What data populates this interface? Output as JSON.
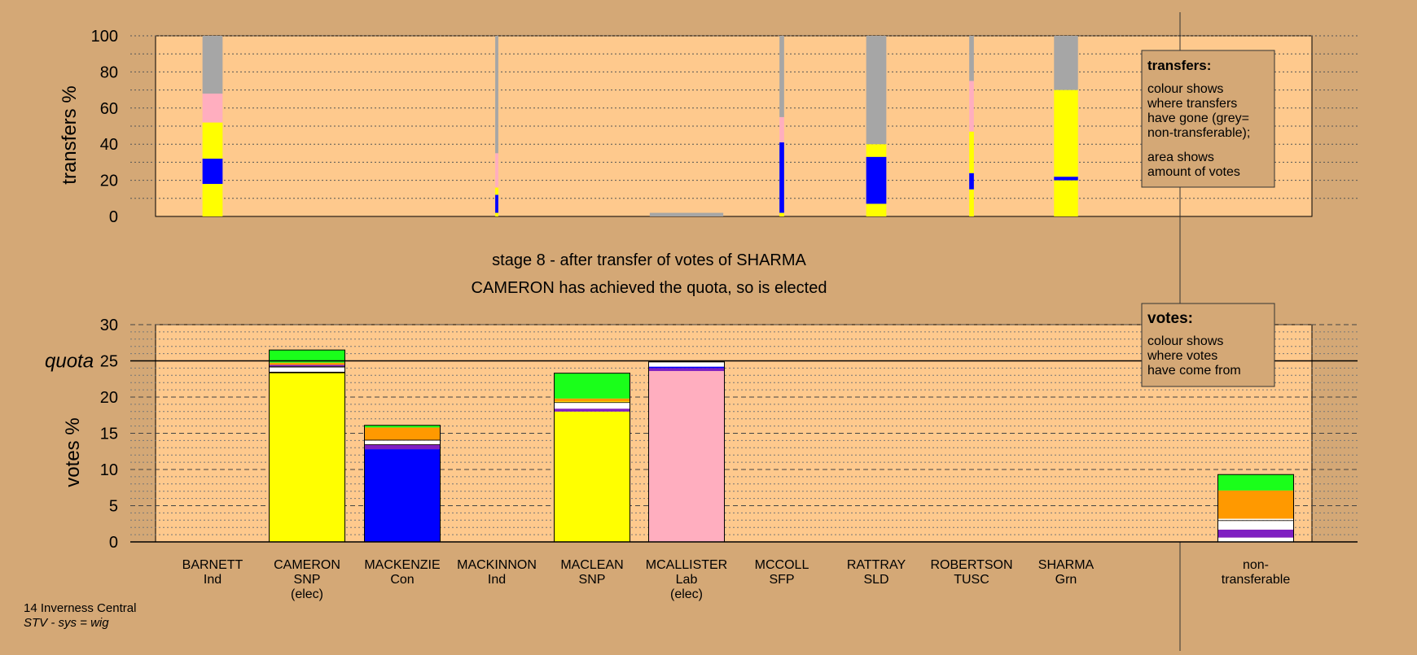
{
  "colors": {
    "page_bg": "#d4a876",
    "plot_bg": "#fec98d",
    "legend_bg": "#d4a876",
    "snp": "#ffff00",
    "con": "#0000ff",
    "lab": "#ffaebf",
    "grn": "#1aff1a",
    "sld": "#ff9900",
    "tusc": "#7f1fc2",
    "ind": "#ffffff",
    "sfp": "#000000",
    "nontransferable": "#a6a6a6"
  },
  "candidates": [
    {
      "name": "BARNETT",
      "party": "Ind",
      "status": ""
    },
    {
      "name": "CAMERON",
      "party": "SNP",
      "status": "(elec)"
    },
    {
      "name": "MACKENZIE",
      "party": "Con",
      "status": ""
    },
    {
      "name": "MACKINNON",
      "party": "Ind",
      "status": ""
    },
    {
      "name": "MACLEAN",
      "party": "SNP",
      "status": ""
    },
    {
      "name": "MCALLISTER",
      "party": "Lab",
      "status": "(elec)"
    },
    {
      "name": "MCCOLL",
      "party": "SFP",
      "status": ""
    },
    {
      "name": "RATTRAY",
      "party": "SLD",
      "status": ""
    },
    {
      "name": "ROBERTSON",
      "party": "TUSC",
      "status": ""
    },
    {
      "name": "SHARMA",
      "party": "Grn",
      "status": ""
    }
  ],
  "nontransferable_label": [
    "non-",
    "transferable"
  ],
  "stage_title": "stage 8 - after transfer of votes of SHARMA",
  "stage_subtitle": "CAMERON has achieved the quota, so is elected",
  "transfers_legend": {
    "title": "transfers:",
    "lines": [
      "colour shows",
      "where transfers",
      "have gone (grey=",
      "non-transferable);"
    ],
    "lines2": [
      "area shows",
      "amount of votes"
    ]
  },
  "votes_legend": {
    "title": "votes:",
    "lines": [
      "colour shows",
      "where votes",
      "have come from"
    ]
  },
  "footer": {
    "line1": "14 Inverness Central",
    "line2": "STV - sys = wig"
  },
  "chart_data": [
    {
      "type": "bar",
      "stacked": true,
      "ylabel": "transfers %",
      "ylim": [
        0,
        100
      ],
      "yticks": [
        0,
        20,
        40,
        60,
        80,
        100
      ],
      "note": "bar width shows amount of votes transferred",
      "bars": [
        {
          "candidate": "BARNETT",
          "relative_width": 0.26,
          "segments": [
            {
              "color": "snp",
              "value": 18
            },
            {
              "color": "con",
              "value": 14
            },
            {
              "color": "snp",
              "value": 20
            },
            {
              "color": "lab",
              "value": 16
            },
            {
              "color": "nontransferable",
              "value": 32
            }
          ]
        },
        {
          "candidate": "MACKINNON",
          "relative_width": 0.04,
          "segments": [
            {
              "color": "snp",
              "value": 2
            },
            {
              "color": "con",
              "value": 10
            },
            {
              "color": "snp",
              "value": 4
            },
            {
              "color": "lab",
              "value": 19
            },
            {
              "color": "nontransferable",
              "value": 65
            }
          ]
        },
        {
          "candidate": "MCALLISTER",
          "relative_width": 0.95,
          "segments": [
            {
              "color": "nontransferable",
              "value": 2
            }
          ]
        },
        {
          "candidate": "MCCOLL",
          "relative_width": 0.06,
          "segments": [
            {
              "color": "snp",
              "value": 2
            },
            {
              "color": "con",
              "value": 39
            },
            {
              "color": "lab",
              "value": 14
            },
            {
              "color": "nontransferable",
              "value": 45
            }
          ]
        },
        {
          "candidate": "RATTRAY",
          "relative_width": 0.26,
          "segments": [
            {
              "color": "snp",
              "value": 7
            },
            {
              "color": "con",
              "value": 26
            },
            {
              "color": "snp",
              "value": 7
            },
            {
              "color": "nontransferable",
              "value": 60
            }
          ]
        },
        {
          "candidate": "ROBERTSON",
          "relative_width": 0.06,
          "segments": [
            {
              "color": "snp",
              "value": 15
            },
            {
              "color": "con",
              "value": 9
            },
            {
              "color": "snp",
              "value": 23
            },
            {
              "color": "lab",
              "value": 28
            },
            {
              "color": "nontransferable",
              "value": 25
            }
          ]
        },
        {
          "candidate": "SHARMA",
          "relative_width": 0.31,
          "segments": [
            {
              "color": "snp",
              "value": 20
            },
            {
              "color": "con",
              "value": 2
            },
            {
              "color": "snp",
              "value": 48
            },
            {
              "color": "nontransferable",
              "value": 30
            }
          ]
        }
      ]
    },
    {
      "type": "bar",
      "stacked": true,
      "ylabel": "votes %",
      "ylim": [
        0,
        30
      ],
      "yticks": [
        0,
        5,
        10,
        15,
        20,
        25,
        30
      ],
      "quota": 25,
      "quota_label": "quota",
      "bars": [
        {
          "candidate": "CAMERON",
          "segments": [
            {
              "color": "snp",
              "value": 23.3
            },
            {
              "color": "sfp",
              "value": 0.2
            },
            {
              "color": "ind",
              "value": 0.6
            },
            {
              "color": "sfp",
              "value": 0.15
            },
            {
              "color": "tusc",
              "value": 0.2
            },
            {
              "color": "sld",
              "value": 0.3
            },
            {
              "color": "grn",
              "value": 1.75
            }
          ]
        },
        {
          "candidate": "MACKENZIE",
          "segments": [
            {
              "color": "con",
              "value": 12.8
            },
            {
              "color": "tusc",
              "value": 0.6
            },
            {
              "color": "sfp",
              "value": 0.1
            },
            {
              "color": "ind",
              "value": 0.5
            },
            {
              "color": "sfp",
              "value": 0.1
            },
            {
              "color": "sld",
              "value": 1.7
            },
            {
              "color": "grn",
              "value": 0.3
            }
          ]
        },
        {
          "candidate": "MACLEAN",
          "segments": [
            {
              "color": "snp",
              "value": 18.0
            },
            {
              "color": "tusc",
              "value": 0.4
            },
            {
              "color": "ind",
              "value": 0.8
            },
            {
              "color": "sfp",
              "value": 0.1
            },
            {
              "color": "snp",
              "value": 0.1
            },
            {
              "color": "sld",
              "value": 0.4
            },
            {
              "color": "grn",
              "value": 3.5
            }
          ]
        },
        {
          "candidate": "MCALLISTER",
          "segments": [
            {
              "color": "lab",
              "value": 23.6
            },
            {
              "color": "tusc",
              "value": 0.4
            },
            {
              "color": "con",
              "value": 0.2
            },
            {
              "color": "ind",
              "value": 0.6
            },
            {
              "color": "sfp",
              "value": 0.2
            }
          ]
        },
        {
          "candidate": "non-transferable",
          "segments": [
            {
              "color": "ind",
              "value": 0.6
            },
            {
              "color": "tusc",
              "value": 1.1
            },
            {
              "color": "ind",
              "value": 1.2
            },
            {
              "color": "sfp",
              "value": 0.1
            },
            {
              "color": "ind",
              "value": 0.2
            },
            {
              "color": "sld",
              "value": 3.9
            },
            {
              "color": "grn",
              "value": 2.2
            }
          ]
        }
      ]
    }
  ]
}
